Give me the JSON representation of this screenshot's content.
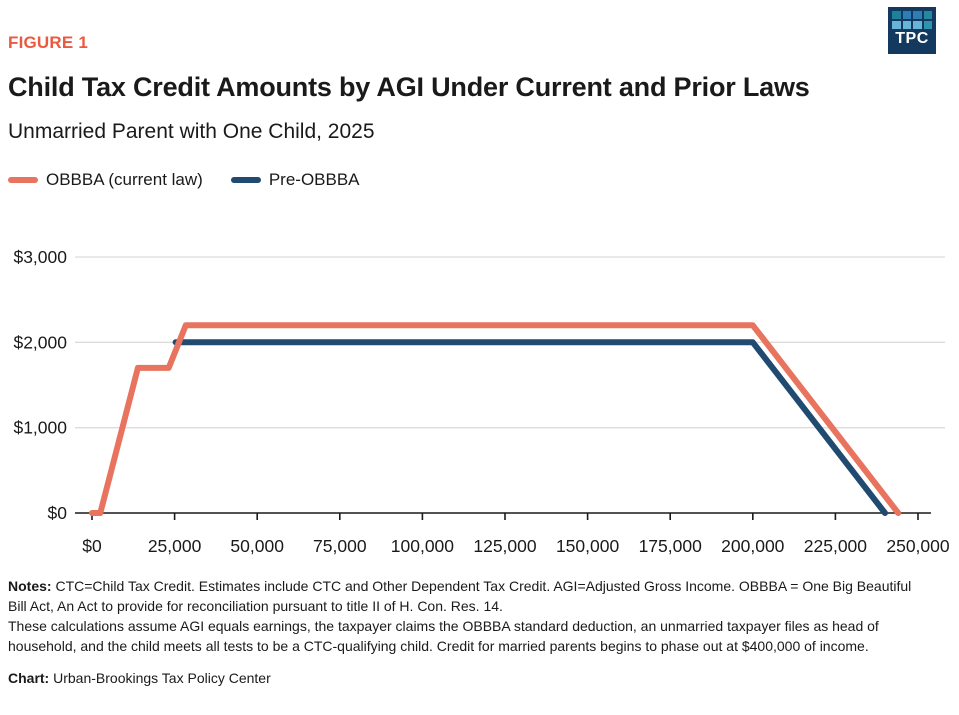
{
  "header": {
    "figure_label": "FIGURE 1",
    "title": "Child Tax Credit Amounts by AGI Under Current and Prior Laws",
    "subtitle": "Unmarried Parent with One Child, 2025",
    "figure_label_color": "#EA5A40"
  },
  "logo": {
    "text": "TPC",
    "bg_color": "#14395E",
    "square_colors": [
      "#1E7F9E",
      "#2E7EB5",
      "#2E7EB5",
      "#27879E",
      "#69B5D8",
      "#69B5D8",
      "#69B5D8",
      "#2E93AE"
    ]
  },
  "legend": {
    "items": [
      {
        "label": "OBBBA (current law)",
        "color": "#E8745F"
      },
      {
        "label": "Pre-OBBBA",
        "color": "#204A70"
      }
    ]
  },
  "chart_data": {
    "type": "line",
    "title": "Child Tax Credit Amounts by AGI Under Current and Prior Laws",
    "subtitle": "Unmarried Parent with One Child, 2025",
    "xlabel": "",
    "ylabel": "",
    "grid": true,
    "legend_position": "top-left",
    "x_axis": {
      "range": [
        0,
        258000
      ],
      "ticks": [
        0,
        25000,
        50000,
        75000,
        100000,
        125000,
        150000,
        175000,
        200000,
        225000,
        250000
      ],
      "tick_labels": [
        "$0",
        "25,000",
        "50,000",
        "75,000",
        "100,000",
        "125,000",
        "150,000",
        "175,000",
        "200,000",
        "225,000",
        "250,000"
      ]
    },
    "y_axis": {
      "range": [
        0,
        3000
      ],
      "ticks": [
        0,
        1000,
        2000,
        3000
      ],
      "tick_labels": [
        "$0",
        "$1,000",
        "$2,000",
        "$3,000"
      ]
    },
    "series": [
      {
        "name": "Pre-OBBBA",
        "color": "#204A70",
        "points": [
          [
            25300,
            2000
          ],
          [
            200000,
            2000
          ],
          [
            240000,
            0
          ]
        ]
      },
      {
        "name": "OBBBA (current law)",
        "color": "#E8745F",
        "points": [
          [
            0,
            0
          ],
          [
            2500,
            0
          ],
          [
            13900,
            1700
          ],
          [
            23200,
            1700
          ],
          [
            28400,
            2200
          ],
          [
            200000,
            2200
          ],
          [
            244000,
            0
          ]
        ]
      }
    ]
  },
  "notes": {
    "label": "Notes:",
    "body1": " CTC=Child Tax Credit. Estimates include CTC and Other Dependent Tax Credit. AGI=Adjusted Gross Income. OBBBA = One Big Beautiful Bill Act, An Act to provide for reconciliation pursuant to title II of H. Con. Res. 14.",
    "body2": "These calculations assume AGI equals earnings, the taxpayer claims the OBBBA standard deduction, an unmarried taxpayer files as head of household, and the child meets all tests to be a CTC-qualifying child. Credit for married parents begins to phase out at $400,000 of income."
  },
  "credit": {
    "label": "Chart:",
    "text": " Urban-Brookings Tax Policy Center"
  }
}
